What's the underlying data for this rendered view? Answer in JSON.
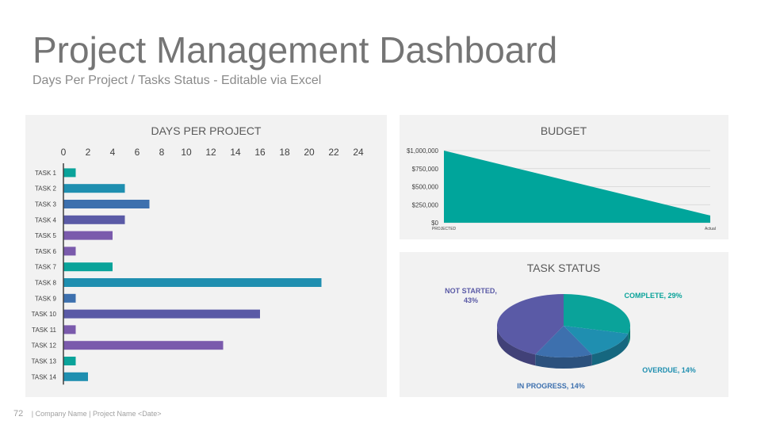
{
  "header": {
    "title": "Project Management Dashboard",
    "subtitle": "Days Per Project /  Tasks Status - Editable via Excel"
  },
  "footer": {
    "page_number": "72",
    "text": "| Company Name | Project Name <Date>"
  },
  "colors": {
    "teal": "#0aa39a",
    "cyan_blue": "#1f8fb0",
    "steel_blue": "#3d70ae",
    "indigo": "#5a5aa6",
    "purple": "#7a5aac",
    "budget_fill": "#00a59b"
  },
  "chart_data": [
    {
      "id": "days_per_project",
      "type": "bar",
      "orientation": "horizontal",
      "title": "DAYS PER PROJECT",
      "xlim": [
        0,
        24
      ],
      "x_ticks": [
        "0",
        "2",
        "4",
        "6",
        "8",
        "10",
        "12",
        "14",
        "16",
        "18",
        "20",
        "22",
        "24"
      ],
      "axis_position": "top",
      "grid": false,
      "categories": [
        "TASK 1",
        "TASK 2",
        "TASK 3",
        "TASK 4",
        "TASK 5",
        "TASK 6",
        "TASK 7",
        "TASK 8",
        "TASK 9",
        "TASK 10",
        "TASK 11",
        "TASK 12",
        "TASK 13",
        "TASK 14"
      ],
      "values": [
        1,
        5,
        7,
        5,
        4,
        1,
        4,
        21,
        1,
        16,
        1,
        13,
        1,
        2
      ],
      "bar_colors": [
        "#0aa39a",
        "#1f8fb0",
        "#3d70ae",
        "#5a5aa6",
        "#7a5aac",
        "#7a5aac",
        "#0aa39a",
        "#1f8fb0",
        "#3d70ae",
        "#5a5aa6",
        "#7a5aac",
        "#7a5aac",
        "#0aa39a",
        "#1f8fb0"
      ]
    },
    {
      "id": "budget",
      "type": "area",
      "title": "BUDGET",
      "categories": [
        "PROJECTED",
        "Actual"
      ],
      "values": [
        1000000,
        100000
      ],
      "ylim": [
        0,
        1000000
      ],
      "y_ticks": [
        "$0",
        "$250,000",
        "$500,000",
        "$750,000",
        "$1,000,000"
      ],
      "grid": true,
      "color": "#00a59b"
    },
    {
      "id": "task_status",
      "type": "pie",
      "style": "3d",
      "title": "TASK STATUS",
      "slices": [
        {
          "label": "COMPLETE, 29%",
          "value": 29,
          "color": "#0aa39a"
        },
        {
          "label": "OVERDUE, 14%",
          "value": 14,
          "color": "#1f8fb0"
        },
        {
          "label": "IN PROGRESS, 14%",
          "value": 14,
          "color": "#3d70ae"
        },
        {
          "label": "NOT STARTED, 43%",
          "value": 43,
          "color": "#5a5aa6"
        }
      ]
    }
  ]
}
